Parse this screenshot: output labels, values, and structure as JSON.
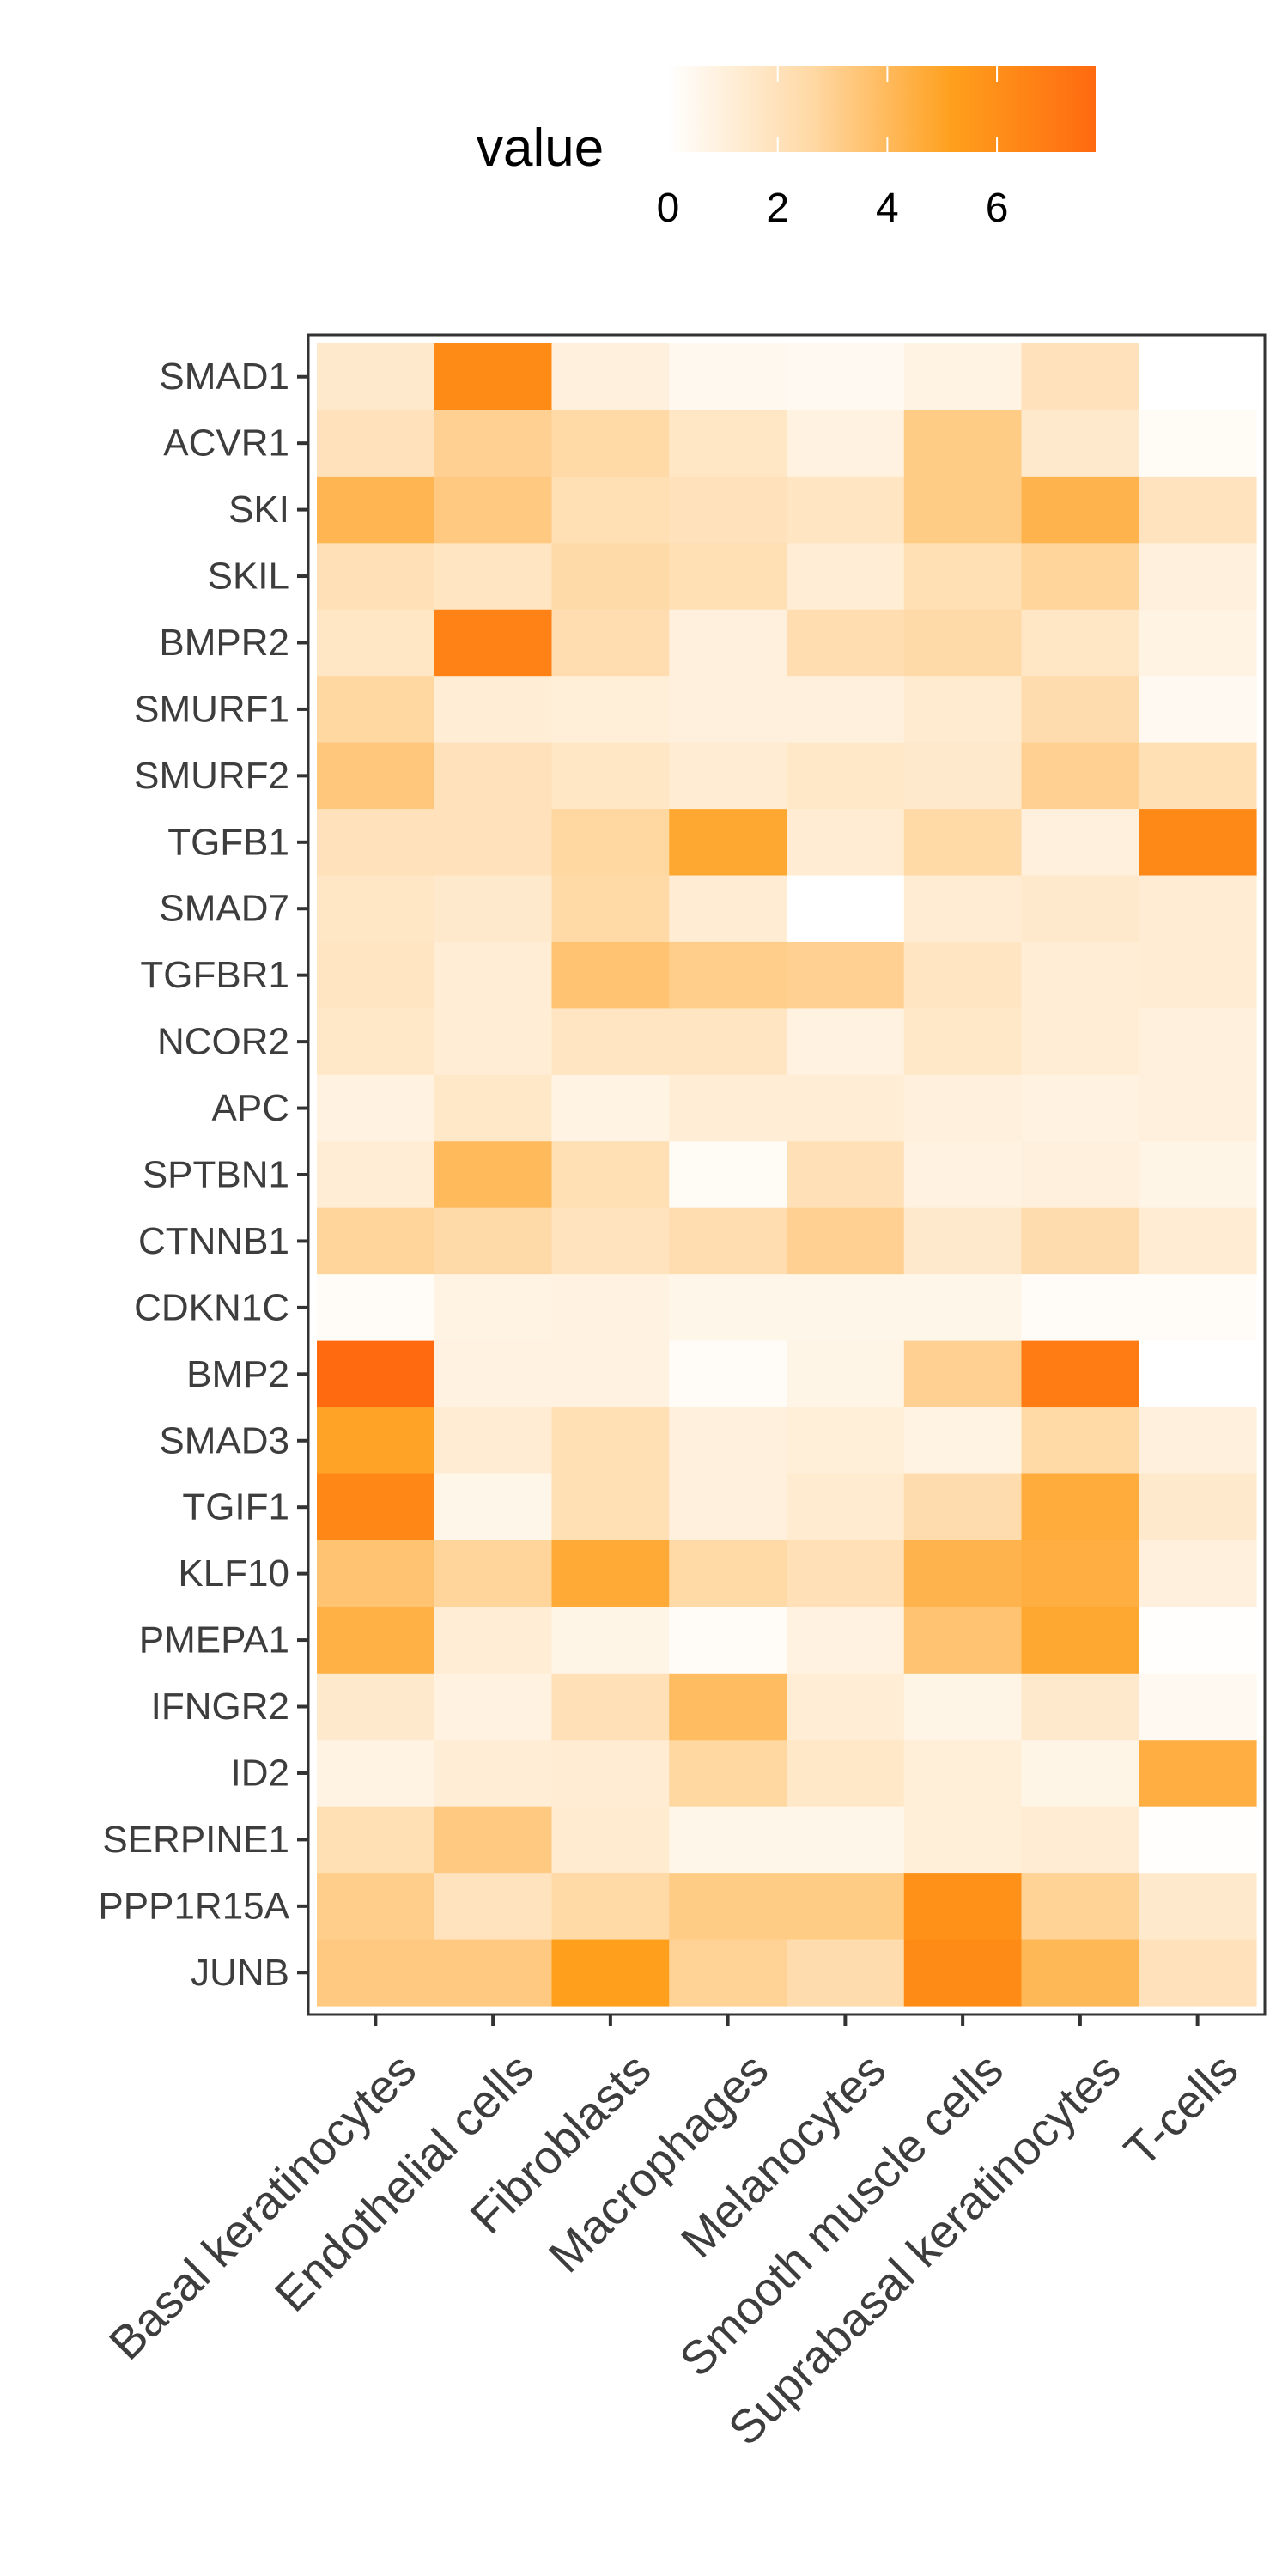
{
  "chart_data": {
    "type": "heatmap",
    "title": "",
    "xlabel": "",
    "ylabel": "",
    "legend": {
      "title": "value",
      "placement": "top",
      "ticks": [
        0,
        2,
        4,
        6
      ],
      "tick_labels": [
        "0",
        "2",
        "4",
        "6"
      ],
      "range": [
        0,
        7.8
      ],
      "colors": [
        "#ffffff",
        "#ffd9a6",
        "#ff9f1c",
        "#ff6a10"
      ]
    },
    "grid": false,
    "x_categories": [
      "Basal keratinocytes",
      "Endothelial cells",
      "Fibroblasts",
      "Macrophages",
      "Melanocytes",
      "Smooth muscle cells",
      "Suprabasal keratinocytes",
      "T-cells"
    ],
    "y_categories": [
      "SMAD1",
      "ACVR1",
      "SKI",
      "SKIL",
      "BMPR2",
      "SMURF1",
      "SMURF2",
      "TGFB1",
      "SMAD7",
      "TGFBR1",
      "NCOR2",
      "APC",
      "SPTBN1",
      "CTNNB1",
      "CDKN1C",
      "BMP2",
      "SMAD3",
      "TGIF1",
      "KLF10",
      "PMEPA1",
      "IFNGR2",
      "ID2",
      "SERPINE1",
      "PPP1R15A",
      "JUNB"
    ],
    "values": [
      [
        1.5,
        6.2,
        1.0,
        0.5,
        0.4,
        0.8,
        2.0,
        0.0
      ],
      [
        2.0,
        3.0,
        2.6,
        1.7,
        0.9,
        3.2,
        1.5,
        0.3
      ],
      [
        4.2,
        3.3,
        2.2,
        2.0,
        1.8,
        3.2,
        4.3,
        1.9
      ],
      [
        2.1,
        1.8,
        2.5,
        2.2,
        1.2,
        2.2,
        2.8,
        1.0
      ],
      [
        1.7,
        6.6,
        2.3,
        1.0,
        2.3,
        2.5,
        1.7,
        0.8
      ],
      [
        2.7,
        1.2,
        1.1,
        1.0,
        1.0,
        1.4,
        2.4,
        0.4
      ],
      [
        3.4,
        2.0,
        1.7,
        1.3,
        1.6,
        1.5,
        3.0,
        2.2
      ],
      [
        2.0,
        2.0,
        2.7,
        4.8,
        1.3,
        2.6,
        1.0,
        6.3
      ],
      [
        1.7,
        1.5,
        2.6,
        1.3,
        0.0,
        1.3,
        1.5,
        1.3
      ],
      [
        1.8,
        1.2,
        3.6,
        3.1,
        3.0,
        1.8,
        1.2,
        1.3
      ],
      [
        1.6,
        1.2,
        1.8,
        1.8,
        0.9,
        1.6,
        1.2,
        1.0
      ],
      [
        0.9,
        1.6,
        0.8,
        1.2,
        1.2,
        1.0,
        0.9,
        1.0
      ],
      [
        1.2,
        4.0,
        2.2,
        0.3,
        2.1,
        0.9,
        1.0,
        0.7
      ],
      [
        2.8,
        2.5,
        1.9,
        2.3,
        3.0,
        1.5,
        2.4,
        1.3
      ],
      [
        0.2,
        0.8,
        0.9,
        0.6,
        0.6,
        0.6,
        0.2,
        0.2
      ],
      [
        7.8,
        0.9,
        0.9,
        0.2,
        0.7,
        3.0,
        6.9,
        0.0
      ],
      [
        5.0,
        1.3,
        2.2,
        1.0,
        1.1,
        0.8,
        2.6,
        1.0
      ],
      [
        6.4,
        0.6,
        2.2,
        1.0,
        1.4,
        2.4,
        4.6,
        1.5
      ],
      [
        3.6,
        2.8,
        4.7,
        2.6,
        2.1,
        4.3,
        4.5,
        1.0
      ],
      [
        4.4,
        1.2,
        0.7,
        0.2,
        0.9,
        3.6,
        4.8,
        0.1
      ],
      [
        1.5,
        0.9,
        2.1,
        3.9,
        1.2,
        0.7,
        1.5,
        0.4
      ],
      [
        0.8,
        1.2,
        1.3,
        2.7,
        1.6,
        1.1,
        0.7,
        4.5
      ],
      [
        2.2,
        3.3,
        1.4,
        0.6,
        0.6,
        1.1,
        1.3,
        0.1
      ],
      [
        3.1,
        1.9,
        2.6,
        3.2,
        3.2,
        5.9,
        2.9,
        1.5
      ],
      [
        3.3,
        3.3,
        5.2,
        2.9,
        2.4,
        6.2,
        4.1,
        2.0
      ]
    ]
  }
}
